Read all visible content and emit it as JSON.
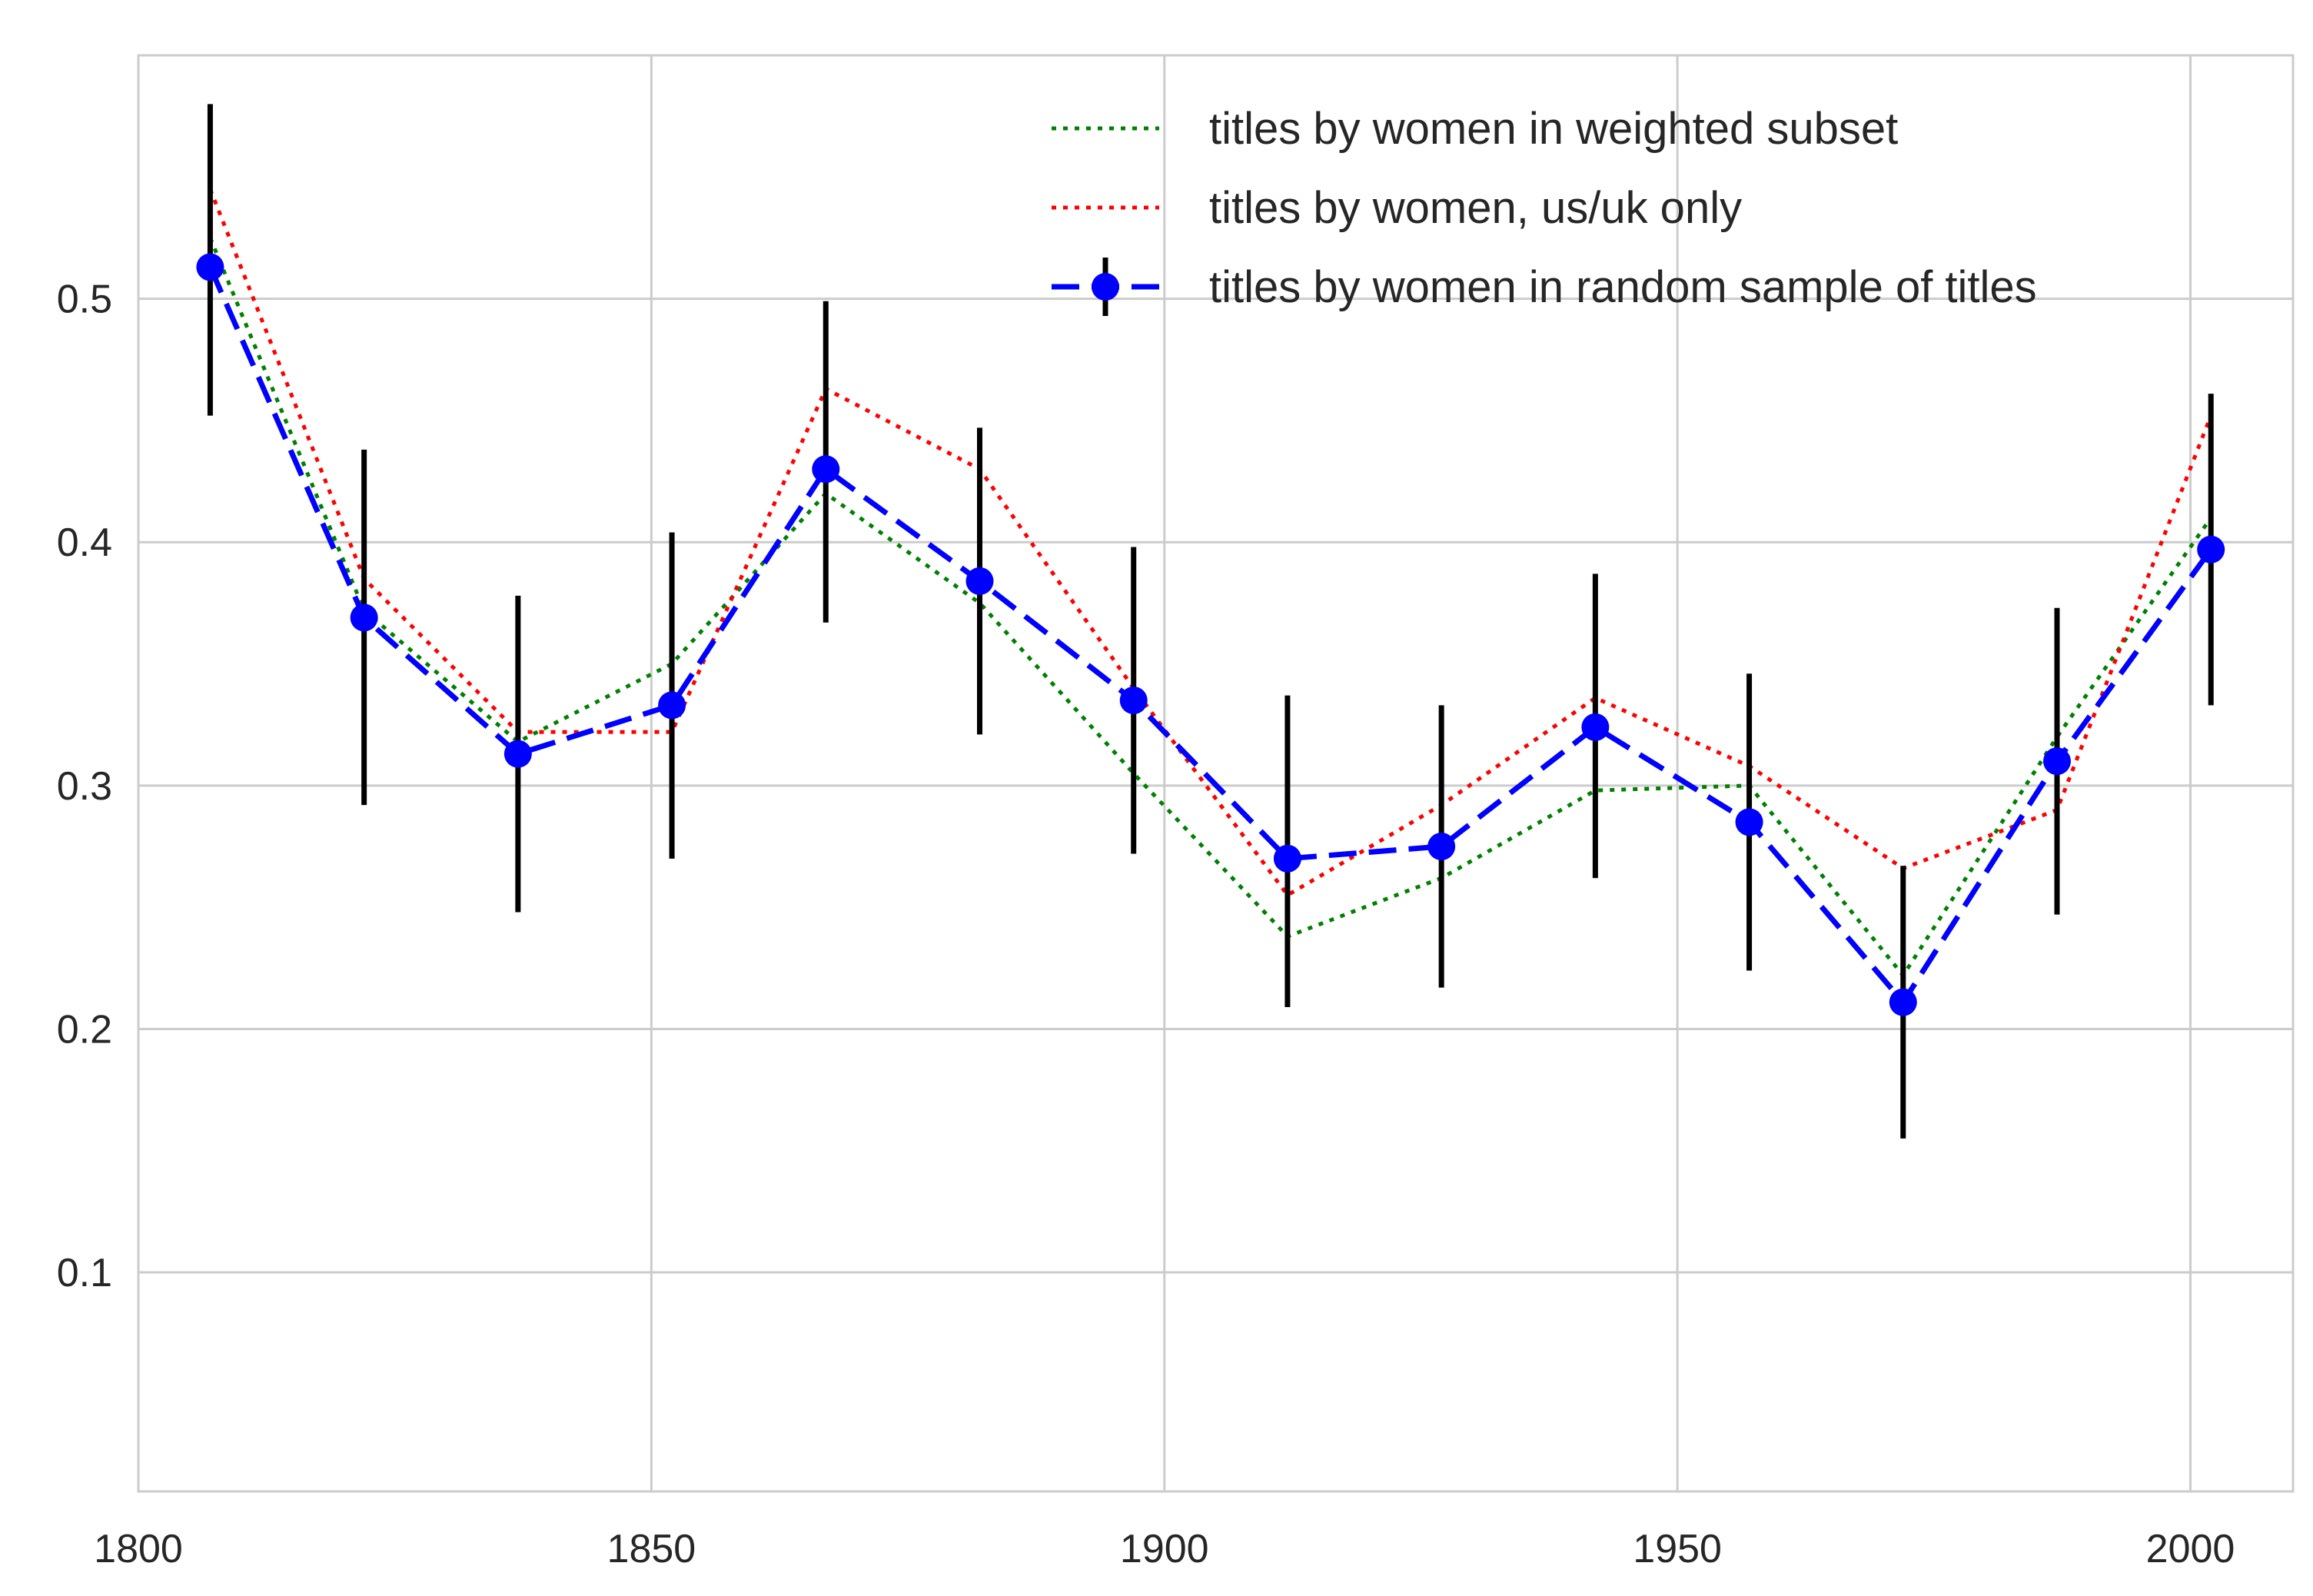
{
  "chart_data": {
    "type": "line",
    "title": "",
    "xlabel": "",
    "ylabel": "",
    "xlim": [
      1800,
      2010
    ],
    "ylim": [
      0.01,
      0.6
    ],
    "xticks": [
      1800,
      1850,
      1900,
      1950,
      2000
    ],
    "yticks": [
      0.1,
      0.2,
      0.3,
      0.4,
      0.5
    ],
    "xtick_labels": [
      "1800",
      "1850",
      "1900",
      "1950",
      "2000"
    ],
    "ytick_labels": [
      "0.1",
      "0.2",
      "0.3",
      "0.4",
      "0.5"
    ],
    "grid": true,
    "legend_position": "top-right",
    "x": [
      1807,
      1822,
      1837,
      1852,
      1867,
      1882,
      1897,
      1912,
      1927,
      1942,
      1957,
      1972,
      1987,
      2002
    ],
    "series": [
      {
        "name": "titles by women in weighted subset",
        "style": "dotted",
        "color": "#008000",
        "values": [
          0.525,
          0.372,
          0.318,
          0.35,
          0.42,
          0.375,
          0.305,
          0.238,
          0.262,
          0.298,
          0.3,
          0.222,
          0.32,
          0.41
        ]
      },
      {
        "name": "titles by women, us/uk only",
        "style": "dotted",
        "color": "#ff0000",
        "values": [
          0.545,
          0.385,
          0.322,
          0.322,
          0.463,
          0.43,
          0.34,
          0.255,
          0.292,
          0.336,
          0.308,
          0.266,
          0.29,
          0.452
        ]
      },
      {
        "name": "titles by women in random sample of titles",
        "style": "dashed",
        "color": "#0000ff",
        "marker": "circle",
        "values": [
          0.513,
          0.369,
          0.313,
          0.333,
          0.43,
          0.384,
          0.335,
          0.27,
          0.275,
          0.324,
          0.285,
          0.211,
          0.31,
          0.397
        ],
        "error_bars": [
          [
            0.452,
            0.58
          ],
          [
            0.292,
            0.438
          ],
          [
            0.248,
            0.378
          ],
          [
            0.27,
            0.404
          ],
          [
            0.367,
            0.499
          ],
          [
            0.321,
            0.447
          ],
          [
            0.272,
            0.398
          ],
          [
            0.209,
            0.337
          ],
          [
            0.217,
            0.333
          ],
          [
            0.262,
            0.387
          ],
          [
            0.224,
            0.346
          ],
          [
            0.155,
            0.267
          ],
          [
            0.247,
            0.373
          ],
          [
            0.333,
            0.461
          ]
        ],
        "error_color": "#000000"
      }
    ]
  }
}
